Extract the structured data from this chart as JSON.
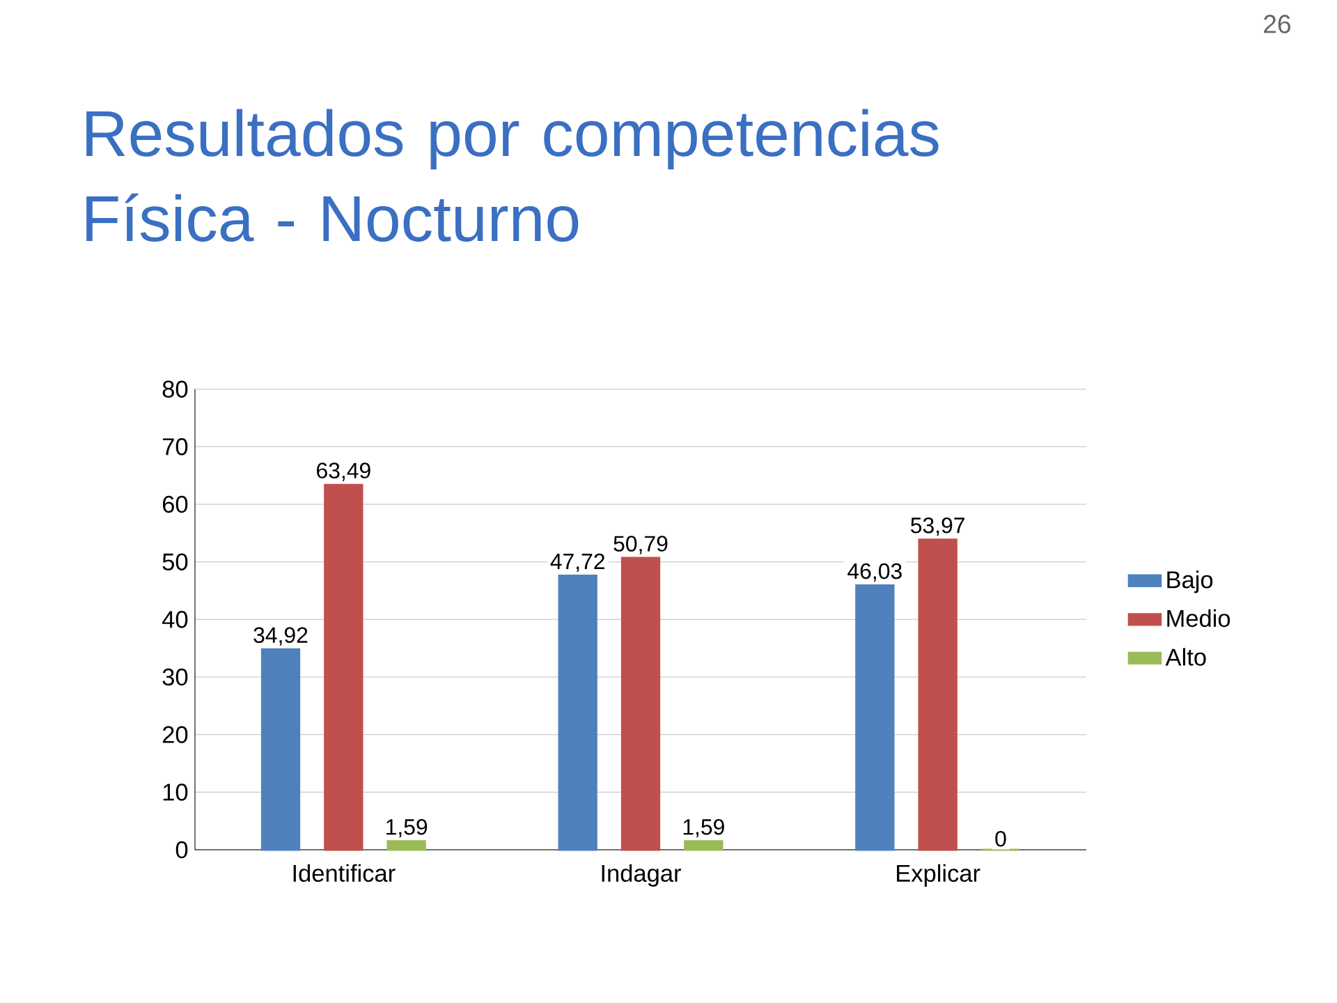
{
  "chart_data": {
    "type": "bar",
    "title": "Resultados por competencias\nFísica - Nocturno",
    "annotations": [
      "26"
    ],
    "categories": [
      "Identificar",
      "Indagar",
      "Explicar"
    ],
    "series": [
      {
        "name": "Bajo",
        "color": "#4f81bd",
        "values": [
          34.92,
          47.72,
          46.03
        ],
        "value_labels": [
          "34,92",
          "47,72",
          "46,03"
        ]
      },
      {
        "name": "Medio",
        "color": "#c0504d",
        "values": [
          63.49,
          50.79,
          53.97
        ],
        "value_labels": [
          "63,49",
          "50,79",
          "53,97"
        ]
      },
      {
        "name": "Alto",
        "color": "#9bbb59",
        "values": [
          1.59,
          1.59,
          0
        ],
        "value_labels": [
          "1,59",
          "1,59",
          "0"
        ]
      }
    ],
    "ylim": [
      0,
      80
    ],
    "yticks": [
      0,
      10,
      20,
      30,
      40,
      50,
      60,
      70,
      80
    ],
    "grid": "y",
    "legend": "right"
  }
}
